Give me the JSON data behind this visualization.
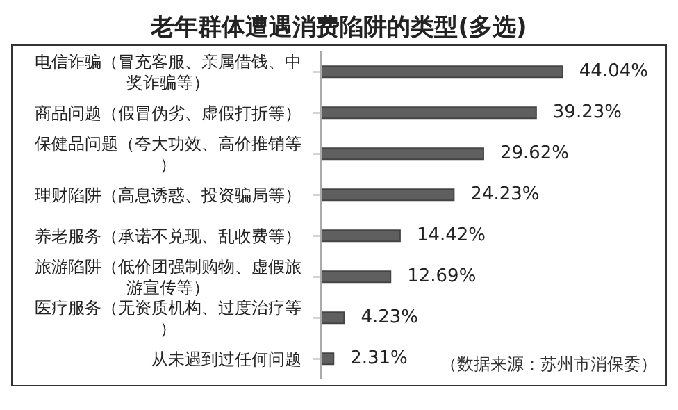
{
  "chart_data": {
    "type": "bar",
    "orientation": "horizontal",
    "title": "老年群体遭遇消费陷阱的类型(多选)",
    "categories": [
      "电信诈骗（冒充客服、亲属借钱、中奖诈骗等）",
      "商品问题（假冒伪劣、虚假打折等）",
      "保健品问题（夸大功效、高价推销等）",
      "理财陷阱（高息诱惑、投资骗局等）",
      "养老服务（承诺不兑现、乱收费等）",
      "旅游陷阱（低价团强制购物、虚假旅游宣传等）",
      "医疗服务（无资质机构、过度治疗等）",
      "从未遇到过任何问题"
    ],
    "values": [
      44.04,
      39.23,
      29.62,
      24.23,
      14.42,
      12.69,
      4.23,
      2.31
    ],
    "value_labels": [
      "44.04%",
      "39.23%",
      "29.62%",
      "24.23%",
      "14.42%",
      "12.69%",
      "4.23%",
      "2.31%"
    ],
    "color": "#5f5f5f",
    "annotations": [
      "（数据来源：苏州市消保委）"
    ]
  }
}
